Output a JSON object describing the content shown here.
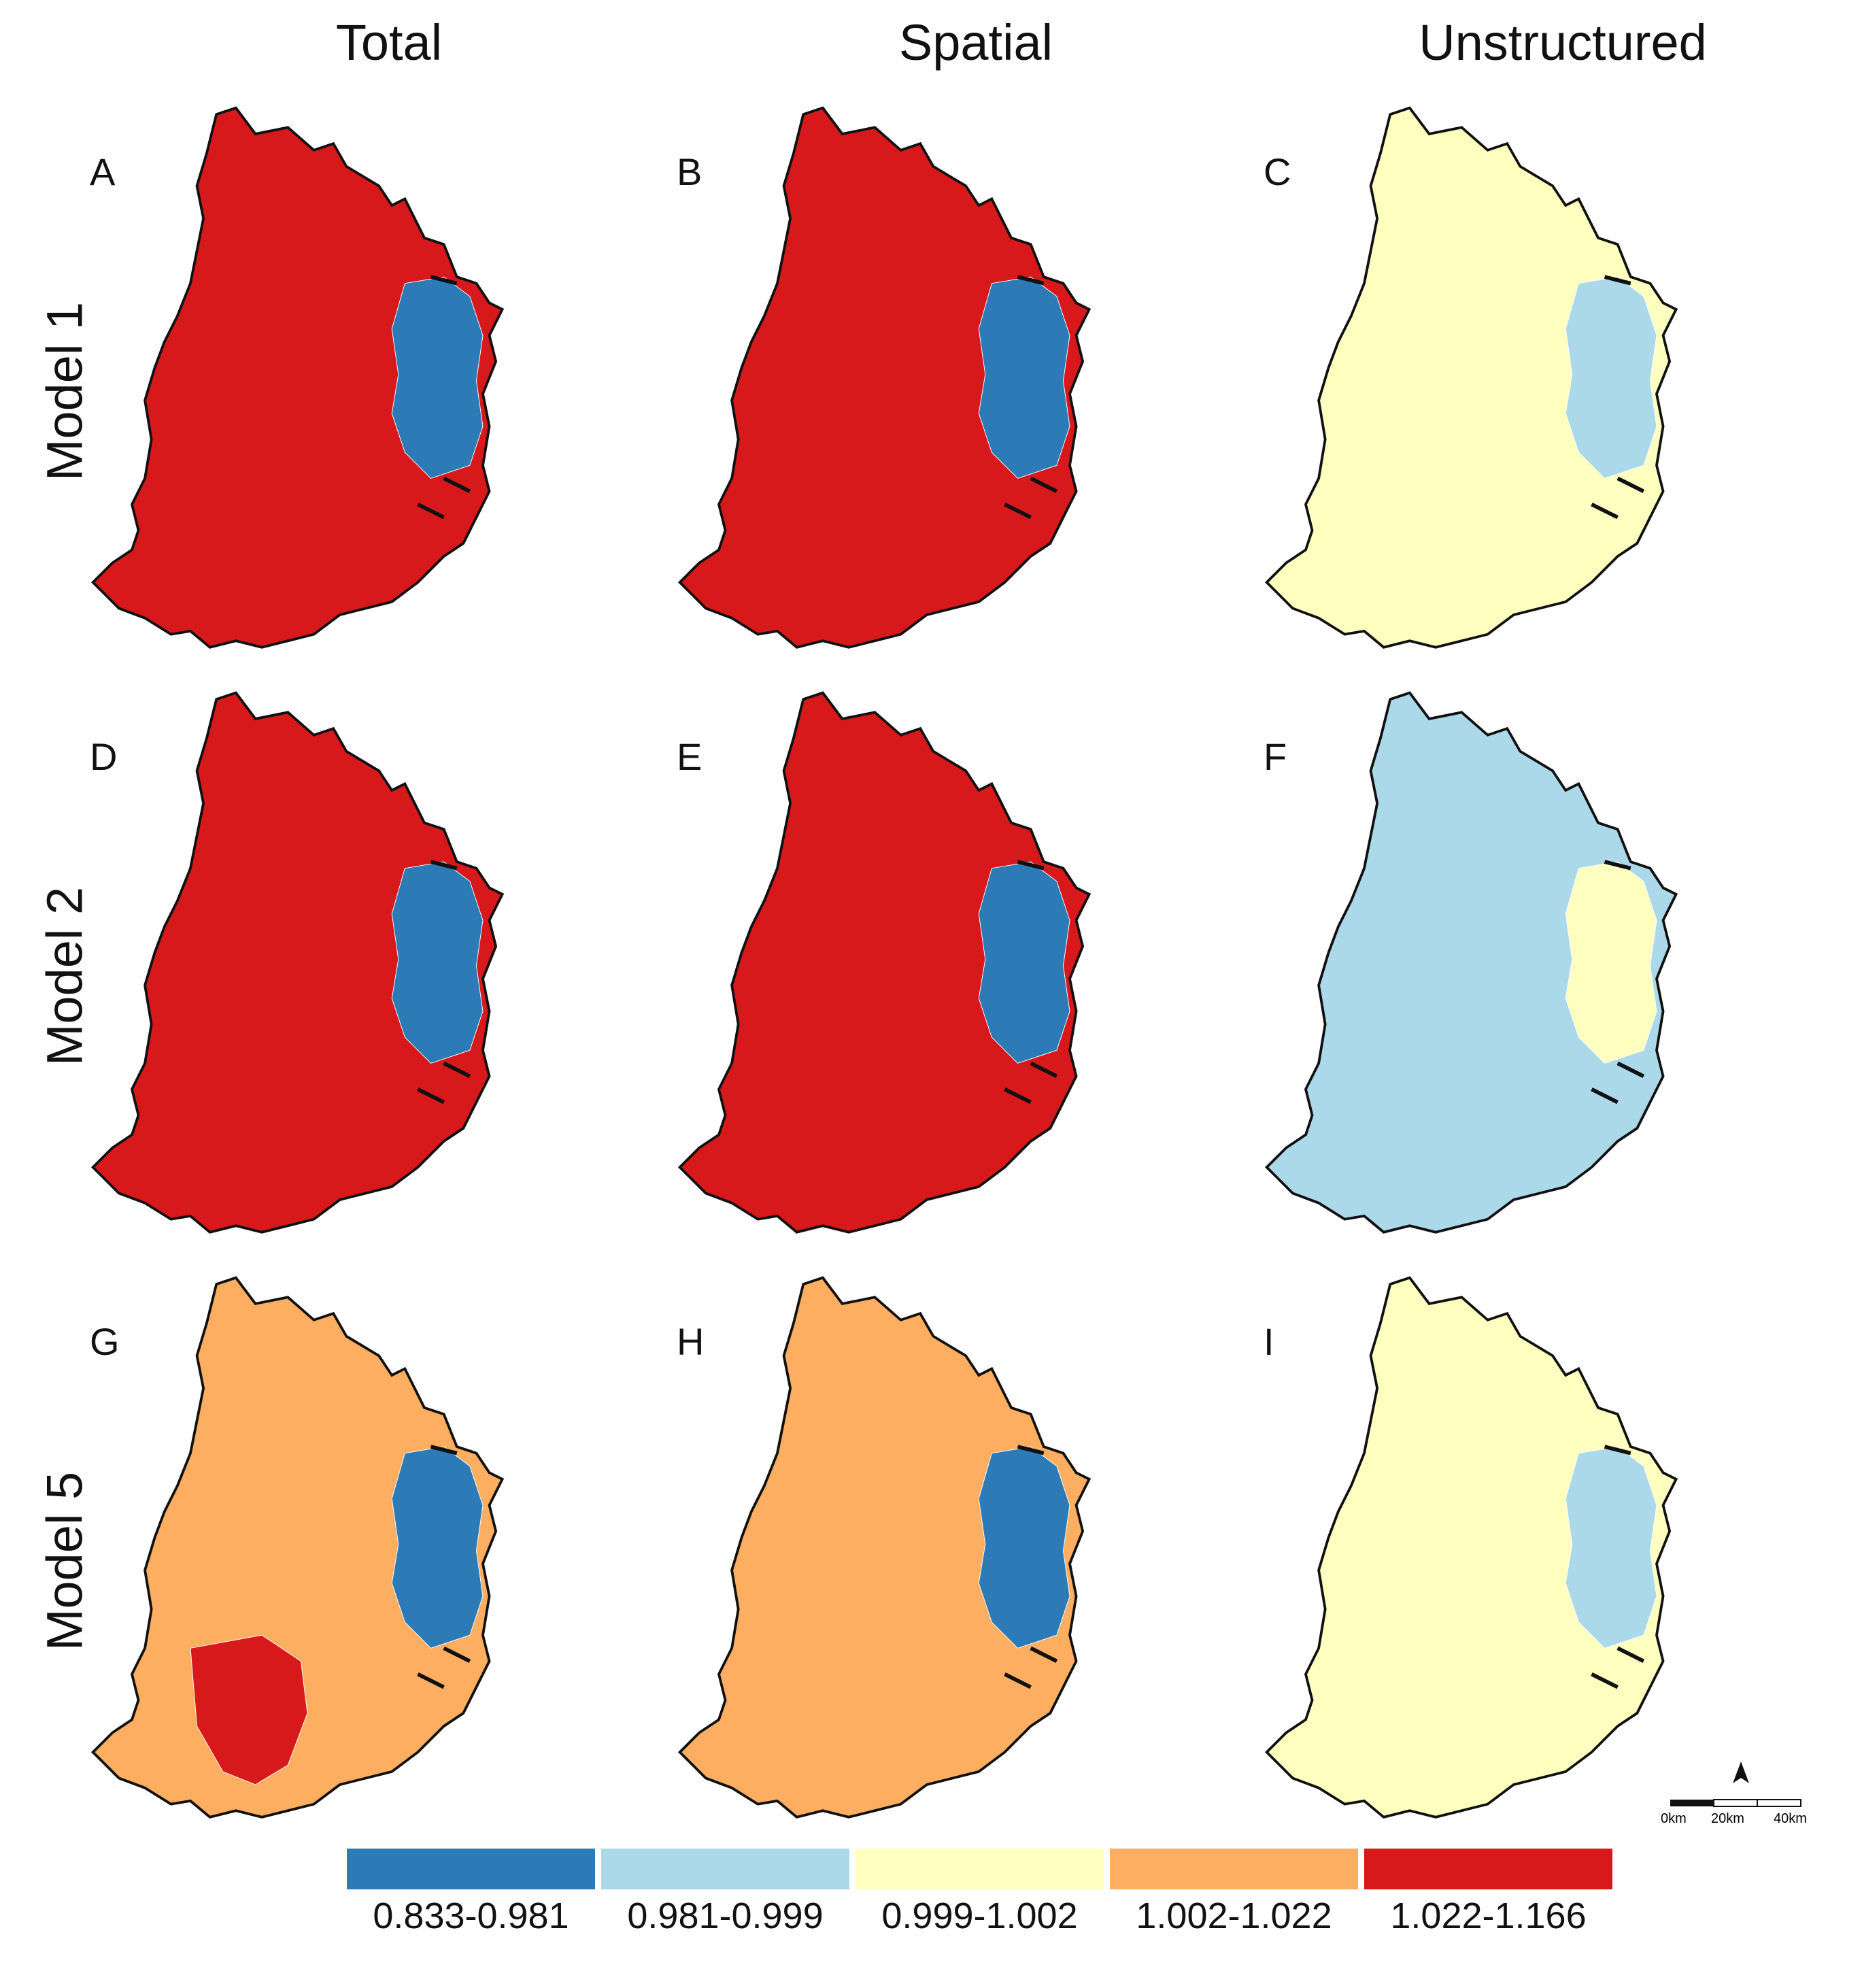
{
  "columns": [
    "Total",
    "Spatial",
    "Unstructured"
  ],
  "rows": [
    "Model 1",
    "Model 2",
    "Model 5"
  ],
  "legend": [
    {
      "label": "0.833-0.981",
      "color": "#2c7bb6"
    },
    {
      "label": "0.981-0.999",
      "color": "#abd9e9"
    },
    {
      "label": "0.999-1.002",
      "color": "#ffffbf"
    },
    {
      "label": "1.002-1.022",
      "color": "#fdae61"
    },
    {
      "label": "1.022-1.166",
      "color": "#d7191c"
    }
  ],
  "panels": [
    {
      "letter": "A",
      "model": "Model 1",
      "component": "Total",
      "dominant_class": "1.022-1.166",
      "east_class": "0.833-0.981"
    },
    {
      "letter": "B",
      "model": "Model 1",
      "component": "Spatial",
      "dominant_class": "1.022-1.166",
      "east_class": "0.833-0.981"
    },
    {
      "letter": "C",
      "model": "Model 1",
      "component": "Unstructured",
      "dominant_class": "0.999-1.002",
      "east_class": "0.981-0.999"
    },
    {
      "letter": "D",
      "model": "Model 2",
      "component": "Total",
      "dominant_class": "1.022-1.166",
      "east_class": "0.833-0.981"
    },
    {
      "letter": "E",
      "model": "Model 2",
      "component": "Spatial",
      "dominant_class": "1.022-1.166",
      "east_class": "0.833-0.981"
    },
    {
      "letter": "F",
      "model": "Model 2",
      "component": "Unstructured",
      "dominant_class": "0.981-0.999",
      "east_class": "0.999-1.002"
    },
    {
      "letter": "G",
      "model": "Model 5",
      "component": "Total",
      "dominant_class": "1.002-1.022",
      "east_class": "0.833-0.981"
    },
    {
      "letter": "H",
      "model": "Model 5",
      "component": "Spatial",
      "dominant_class": "1.002-1.022",
      "east_class": "0.833-0.981"
    },
    {
      "letter": "I",
      "model": "Model 5",
      "component": "Unstructured",
      "dominant_class": "0.999-1.002",
      "east_class": "0.981-0.999"
    }
  ],
  "scalebar": {
    "labels": [
      "0km",
      "20km",
      "40km"
    ],
    "north_arrow": "north-arrow-icon"
  }
}
